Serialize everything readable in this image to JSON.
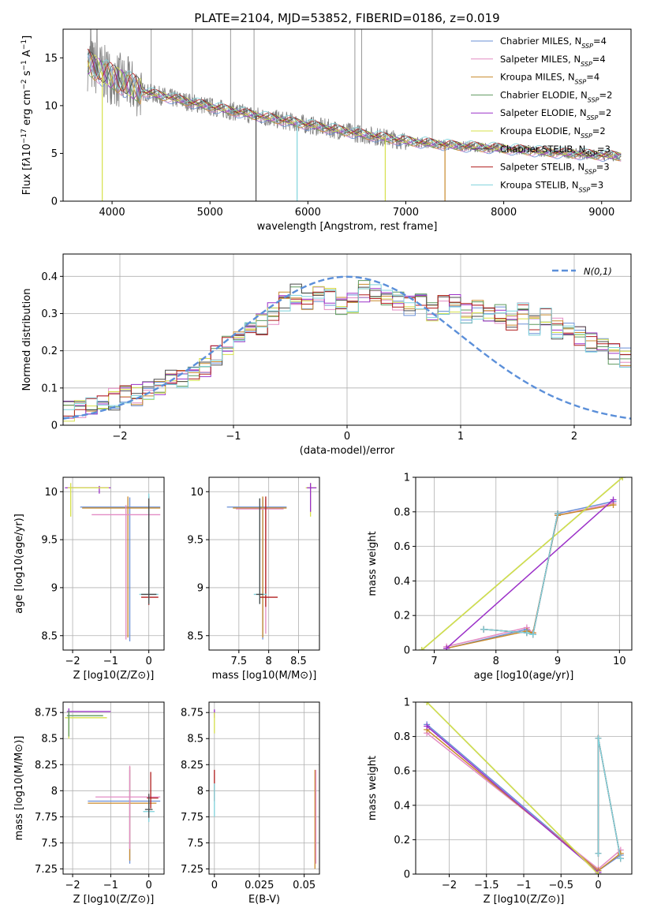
{
  "figure": {
    "title": "PLATE=2104, MJD=53852, FIBERID=0186, z=0.019"
  },
  "models": [
    {
      "name": "Chabrier MILES",
      "nssp": "4",
      "color": "#6a8fd6"
    },
    {
      "name": "Salpeter MILES",
      "nssp": "4",
      "color": "#e38cc4"
    },
    {
      "name": "Kroupa MILES",
      "nssp": "4",
      "color": "#c88a2c"
    },
    {
      "name": "Chabrier ELODIE",
      "nssp": "2",
      "color": "#5f9a5f"
    },
    {
      "name": "Salpeter ELODIE",
      "nssp": "2",
      "color": "#9b30c8"
    },
    {
      "name": "Kroupa ELODIE",
      "nssp": "2",
      "color": "#d6e04a"
    },
    {
      "name": "Chabrier STELIB",
      "nssp": "3",
      "color": "#4a4a4a"
    },
    {
      "name": "Salpeter STELIB",
      "nssp": "3",
      "color": "#b01e1e"
    },
    {
      "name": "Kroupa STELIB",
      "nssp": "3",
      "color": "#7fd3dc"
    }
  ],
  "chart_data": [
    {
      "id": "spectrum",
      "type": "line",
      "xlabel": "wavelength [Angstrom, rest frame]",
      "ylabel_html": "Flux [f<tspan font-style='italic'>λ</tspan>10<tspan baseline-shift='super' font-size='9'>−17</tspan> erg cm<tspan baseline-shift='super' font-size='9'>−2</tspan> s<tspan baseline-shift='super' font-size='9'>−1</tspan> A<tspan baseline-shift='super' font-size='9'>−1</tspan>]",
      "xlim": [
        3500,
        9300
      ],
      "ylim": [
        0,
        18
      ],
      "xticks": [
        4000,
        5000,
        6000,
        7000,
        8000,
        9000
      ],
      "yticks": [
        0,
        5,
        10,
        15
      ],
      "data_color": "#808080",
      "continuum": [
        [
          3750,
          14.5
        ],
        [
          3900,
          13.5
        ],
        [
          4100,
          12.5
        ],
        [
          4300,
          11.5
        ],
        [
          4600,
          10.8
        ],
        [
          5000,
          9.9
        ],
        [
          5500,
          8.9
        ],
        [
          6000,
          8.0
        ],
        [
          6500,
          7.1
        ],
        [
          7000,
          6.3
        ],
        [
          7500,
          5.8
        ],
        [
          8000,
          5.5
        ],
        [
          8500,
          5.1
        ],
        [
          9000,
          4.8
        ],
        [
          9200,
          4.7
        ]
      ],
      "dips": [
        {
          "x": 3900,
          "y": 0,
          "model": 5
        },
        {
          "x": 5470,
          "y": 0,
          "model": 6
        },
        {
          "x": 5890,
          "y": 0,
          "model": 8
        },
        {
          "x": 6790,
          "y": 0,
          "model": 5
        },
        {
          "x": 7400,
          "y": 0,
          "model": 2
        }
      ]
    },
    {
      "id": "residual_hist",
      "type": "histogram",
      "xlabel": "(data-model)/error",
      "ylabel": "Normed distribution",
      "xlim": [
        -2.5,
        2.5
      ],
      "ylim": [
        0,
        0.46
      ],
      "xticks": [
        -2,
        -1,
        0,
        1,
        2
      ],
      "yticks": [
        0.0,
        0.1,
        0.2,
        0.3,
        0.4
      ],
      "legend_label": "N(0,1)",
      "gaussian_color": "#5b8fd9",
      "bin_edges_start": -2.5,
      "bin_width": 0.1,
      "base_values": [
        0.035,
        0.04,
        0.045,
        0.055,
        0.07,
        0.085,
        0.08,
        0.095,
        0.11,
        0.13,
        0.13,
        0.15,
        0.16,
        0.19,
        0.22,
        0.23,
        0.25,
        0.27,
        0.3,
        0.33,
        0.35,
        0.33,
        0.35,
        0.34,
        0.32,
        0.33,
        0.36,
        0.35,
        0.34,
        0.33,
        0.32,
        0.33,
        0.31,
        0.32,
        0.33,
        0.3,
        0.31,
        0.29,
        0.3,
        0.28,
        0.3,
        0.27,
        0.29,
        0.26,
        0.25,
        0.24,
        0.22,
        0.21,
        0.19,
        0.18,
        0.16,
        0.15,
        0.13,
        0.12,
        0.11,
        0.1,
        0.09,
        0.08,
        0.07,
        0.06,
        0.055,
        0.05,
        0.045,
        0.04,
        0.035,
        0.03,
        0.03,
        0.025,
        0.025,
        0.02
      ]
    },
    {
      "id": "Z_vs_age",
      "type": "errorbar",
      "xlabel": "Z [log10(Z/Z⊙)]",
      "ylabel": "age  [log10(age/yr)]",
      "xlim": [
        -2.25,
        0.4
      ],
      "ylim": [
        8.35,
        10.15
      ],
      "xticks": [
        -2,
        -1,
        0
      ],
      "yticks": [
        8.5,
        9.0,
        9.5,
        10.0
      ],
      "points": [
        {
          "x": -1.3,
          "y": 10.04,
          "xerr": [
            0.9,
            0.3
          ],
          "yerr": [
            0.06,
            0.02
          ],
          "model": 4
        },
        {
          "x": -2.05,
          "y": 10.04,
          "xerr": [
            0.08,
            1.0
          ],
          "yerr": [
            0.3,
            0.05
          ],
          "model": 5
        },
        {
          "x": -0.5,
          "y": 9.84,
          "xerr": [
            1.3,
            0.8
          ],
          "yerr": [
            1.4,
            0.1
          ],
          "model": 0
        },
        {
          "x": -0.55,
          "y": 9.83,
          "xerr": [
            1.2,
            0.85
          ],
          "yerr": [
            1.35,
            0.12
          ],
          "model": 2
        },
        {
          "x": -0.6,
          "y": 9.76,
          "xerr": [
            0.9,
            0.9
          ],
          "yerr": [
            1.3,
            0.1
          ],
          "model": 1
        },
        {
          "x": 0.0,
          "y": 8.9,
          "xerr": [
            0.2,
            0.25
          ],
          "yerr": [
            0.08,
            1.05
          ],
          "model": 7
        },
        {
          "x": 0.0,
          "y": 8.93,
          "xerr": [
            0.25,
            0.25
          ],
          "yerr": [
            0.1,
            1.05
          ],
          "model": 8
        },
        {
          "x": 0.0,
          "y": 8.93,
          "xerr": [
            0.2,
            0.2
          ],
          "yerr": [
            0.1,
            1.0
          ],
          "model": 6
        }
      ]
    },
    {
      "id": "mass_vs_age",
      "type": "errorbar",
      "xlabel": "mass [log10(M/M⊙)]",
      "ylabel": "",
      "xlim": [
        7.0,
        8.85
      ],
      "ylim": [
        8.35,
        10.15
      ],
      "xticks": [
        7.5,
        8.0,
        8.5
      ],
      "yticks": [
        8.5,
        9.0,
        9.5,
        10.0
      ],
      "points": [
        {
          "x": 8.7,
          "y": 10.04,
          "xerr": [
            0.08,
            0.1
          ],
          "yerr": [
            0.3,
            0.05
          ],
          "model": 5
        },
        {
          "x": 8.7,
          "y": 10.04,
          "xerr": [
            0.06,
            0.1
          ],
          "yerr": [
            0.25,
            0.05
          ],
          "model": 4
        },
        {
          "x": 7.9,
          "y": 9.84,
          "xerr": [
            0.6,
            0.4
          ],
          "yerr": [
            1.38,
            0.1
          ],
          "model": 0
        },
        {
          "x": 7.9,
          "y": 9.83,
          "xerr": [
            0.5,
            0.4
          ],
          "yerr": [
            1.35,
            0.12
          ],
          "model": 2
        },
        {
          "x": 7.95,
          "y": 9.82,
          "xerr": [
            0.5,
            0.3
          ],
          "yerr": [
            1.3,
            0.1
          ],
          "model": 1
        },
        {
          "x": 7.95,
          "y": 8.9,
          "xerr": [
            0.1,
            0.2
          ],
          "yerr": [
            0.1,
            1.05
          ],
          "model": 7
        },
        {
          "x": 7.85,
          "y": 8.93,
          "xerr": [
            0.1,
            0.12
          ],
          "yerr": [
            0.1,
            1.0
          ],
          "model": 8
        },
        {
          "x": 7.85,
          "y": 8.93,
          "xerr": [
            0.06,
            0.06
          ],
          "yerr": [
            0.1,
            1.0
          ],
          "model": 6
        }
      ]
    },
    {
      "id": "age_vs_massweight",
      "type": "line",
      "xlabel": "age  [log10(age/yr)]",
      "ylabel": "mass weight",
      "xlim": [
        6.7,
        10.2
      ],
      "ylim": [
        0,
        1.0
      ],
      "xticks": [
        7,
        8,
        9,
        10
      ],
      "yticks": [
        0.0,
        0.2,
        0.4,
        0.6,
        0.8,
        1.0
      ],
      "series": [
        {
          "model": 0,
          "x": [
            7.2,
            8.5,
            8.6,
            9.0,
            9.9
          ],
          "y": [
            0.01,
            0.12,
            0.09,
            0.79,
            0.86
          ]
        },
        {
          "model": 1,
          "x": [
            7.2,
            8.5,
            8.6,
            9.0,
            9.9
          ],
          "y": [
            0.02,
            0.13,
            0.1,
            0.78,
            0.85
          ]
        },
        {
          "model": 2,
          "x": [
            7.2,
            8.5,
            8.6,
            9.0,
            9.9
          ],
          "y": [
            0.01,
            0.11,
            0.1,
            0.78,
            0.84
          ]
        },
        {
          "model": 3,
          "x": [
            6.8,
            10.05
          ],
          "y": [
            0.0,
            1.0
          ]
        },
        {
          "model": 4,
          "x": [
            7.2,
            9.9
          ],
          "y": [
            0.01,
            0.87
          ]
        },
        {
          "model": 5,
          "x": [
            6.8,
            10.05
          ],
          "y": [
            0.0,
            1.0
          ]
        },
        {
          "model": 6,
          "x": [
            7.8,
            8.5,
            8.6,
            9.0
          ],
          "y": [
            0.12,
            0.1,
            0.09,
            0.79
          ]
        },
        {
          "model": 7,
          "x": [
            7.8,
            8.5,
            8.6,
            9.0
          ],
          "y": [
            0.12,
            0.1,
            0.09,
            0.79
          ]
        },
        {
          "model": 8,
          "x": [
            7.8,
            8.5,
            8.6,
            9.0
          ],
          "y": [
            0.12,
            0.1,
            0.09,
            0.79
          ]
        }
      ]
    },
    {
      "id": "Z_vs_mass",
      "type": "errorbar",
      "xlabel": "Z [log10(Z/Z⊙)]",
      "ylabel": "mass [log10(M/M⊙)]",
      "xlim": [
        -2.25,
        0.4
      ],
      "ylim": [
        7.2,
        8.85
      ],
      "xticks": [
        -2,
        -1,
        0
      ],
      "yticks": [
        7.25,
        7.5,
        7.75,
        8.0,
        8.25,
        8.5,
        8.75
      ],
      "points": [
        {
          "x": -2.1,
          "y": 8.76,
          "xerr": [
            0.05,
            1.1
          ],
          "yerr": [
            0.05,
            0.03
          ],
          "model": 4
        },
        {
          "x": -2.1,
          "y": 8.7,
          "xerr": [
            0.1,
            1.0
          ],
          "yerr": [
            0.2,
            0.02
          ],
          "model": 5
        },
        {
          "x": -2.1,
          "y": 8.72,
          "xerr": [
            0.05,
            0.9
          ],
          "yerr": [
            0.2,
            0.05
          ],
          "model": 3
        },
        {
          "x": -0.5,
          "y": 7.9,
          "xerr": [
            1.1,
            0.8
          ],
          "yerr": [
            0.6,
            0.3
          ],
          "model": 0
        },
        {
          "x": -0.5,
          "y": 7.88,
          "xerr": [
            1.1,
            0.7
          ],
          "yerr": [
            0.55,
            0.35
          ],
          "model": 2
        },
        {
          "x": -0.5,
          "y": 7.94,
          "xerr": [
            0.9,
            0.8
          ],
          "yerr": [
            0.5,
            0.3
          ],
          "model": 1
        },
        {
          "x": 0.05,
          "y": 7.93,
          "xerr": [
            0.1,
            0.2
          ],
          "yerr": [
            0.1,
            0.25
          ],
          "model": 7
        },
        {
          "x": 0.0,
          "y": 7.8,
          "xerr": [
            0.15,
            0.15
          ],
          "yerr": [
            0.1,
            0.15
          ],
          "model": 8
        },
        {
          "x": 0.0,
          "y": 7.82,
          "xerr": [
            0.1,
            0.1
          ],
          "yerr": [
            0.08,
            0.15
          ],
          "model": 6
        }
      ]
    },
    {
      "id": "ebv_vs_mass",
      "type": "errorbar",
      "xlabel": "E(B-V)",
      "ylabel": "",
      "xlim": [
        -0.003,
        0.0585
      ],
      "ylim": [
        7.2,
        8.85
      ],
      "xticks": [
        0.0,
        0.025,
        0.05
      ],
      "yticks": [
        7.25,
        7.5,
        7.75,
        8.0,
        8.25,
        8.5,
        8.75
      ],
      "points": [
        {
          "x": 0.0,
          "y": 8.75,
          "xerr": [
            0.0,
            0.0
          ],
          "yerr": [
            0.05,
            0.03
          ],
          "model": 4
        },
        {
          "x": 0.0,
          "y": 8.7,
          "xerr": [
            0.0,
            0.0
          ],
          "yerr": [
            0.15,
            0.05
          ],
          "model": 5
        },
        {
          "x": 0.0,
          "y": 8.05,
          "xerr": [
            0.0,
            0.0
          ],
          "yerr": [
            0.15,
            0.15
          ],
          "model": 7
        },
        {
          "x": 0.0,
          "y": 7.95,
          "xerr": [
            0.0,
            0.0
          ],
          "yerr": [
            0.2,
            0.12
          ],
          "model": 8
        },
        {
          "x": 0.056,
          "y": 7.9,
          "xerr": [
            0.0,
            0.0
          ],
          "yerr": [
            0.65,
            0.3
          ],
          "model": 2
        },
        {
          "x": 0.0565,
          "y": 7.9,
          "xerr": [
            0.0,
            0.0
          ],
          "yerr": [
            0.6,
            0.3
          ],
          "model": 1
        }
      ]
    },
    {
      "id": "Z_vs_massweight",
      "type": "line",
      "xlabel": "Z [log10(Z/Z⊙)]",
      "ylabel": "mass weight",
      "xlim": [
        -2.45,
        0.45
      ],
      "ylim": [
        0,
        1.0
      ],
      "xticks": [
        -2.0,
        -1.5,
        -1.0,
        -0.5,
        0.0
      ],
      "yticks": [
        0.0,
        0.2,
        0.4,
        0.6,
        0.8,
        1.0
      ],
      "series": [
        {
          "model": 0,
          "x": [
            -2.3,
            0.0,
            0.3
          ],
          "y": [
            0.87,
            0.02,
            0.11
          ]
        },
        {
          "model": 1,
          "x": [
            -2.3,
            0.0,
            0.3
          ],
          "y": [
            0.82,
            0.03,
            0.14
          ]
        },
        {
          "model": 2,
          "x": [
            -2.3,
            0.0,
            0.3
          ],
          "y": [
            0.84,
            0.02,
            0.12
          ]
        },
        {
          "model": 3,
          "x": [
            -2.3,
            0.0
          ],
          "y": [
            1.0,
            0.0
          ]
        },
        {
          "model": 4,
          "x": [
            -2.3,
            0.0
          ],
          "y": [
            0.86,
            0.01
          ]
        },
        {
          "model": 5,
          "x": [
            -2.3,
            0.0
          ],
          "y": [
            1.0,
            0.0
          ]
        },
        {
          "model": 6,
          "x": [
            0.0,
            0.0,
            0.3
          ],
          "y": [
            0.12,
            0.79,
            0.09
          ]
        },
        {
          "model": 7,
          "x": [
            0.0,
            0.0,
            0.3
          ],
          "y": [
            0.12,
            0.79,
            0.09
          ]
        },
        {
          "model": 8,
          "x": [
            0.0,
            0.0,
            0.3
          ],
          "y": [
            0.12,
            0.79,
            0.09
          ]
        }
      ]
    }
  ]
}
